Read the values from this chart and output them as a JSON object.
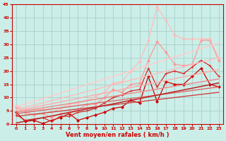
{
  "title": "",
  "xlabel": "Vent moyen/en rafales ( km/h )",
  "ylabel": "",
  "bg_color": "#cceee8",
  "grid_color": "#aad4ce",
  "xlim": [
    -0.5,
    23.5
  ],
  "ylim": [
    0,
    45
  ],
  "yticks": [
    0,
    5,
    10,
    15,
    20,
    25,
    30,
    35,
    40,
    45
  ],
  "xticks": [
    0,
    1,
    2,
    3,
    4,
    5,
    6,
    7,
    8,
    9,
    10,
    11,
    12,
    13,
    14,
    15,
    16,
    17,
    18,
    19,
    20,
    21,
    22,
    23
  ],
  "series": [
    {
      "x": [
        0,
        1,
        2,
        3,
        4,
        5,
        6,
        7,
        8,
        9,
        10,
        11,
        12,
        13,
        14,
        15,
        16,
        17,
        18,
        19,
        20,
        21,
        22,
        23
      ],
      "y": [
        4.5,
        1.0,
        1.5,
        0.3,
        1.5,
        2.5,
        4.0,
        1.5,
        2.5,
        3.5,
        4.5,
        6.0,
        6.5,
        9.0,
        8.0,
        18.0,
        8.5,
        16.0,
        15.0,
        15.0,
        18.0,
        21.0,
        15.0,
        14.0
      ],
      "color": "#cc0000",
      "marker": "D",
      "markersize": 2.0,
      "linewidth": 0.9
    },
    {
      "x": [
        0,
        1,
        2,
        3,
        4,
        5,
        6,
        7,
        8,
        9,
        10,
        11,
        12,
        13,
        14,
        15,
        16,
        17,
        18,
        19,
        20,
        21,
        22,
        23
      ],
      "y": [
        3.5,
        1.5,
        2.0,
        2.5,
        1.0,
        3.0,
        3.0,
        4.5,
        5.0,
        6.0,
        8.0,
        10.0,
        11.0,
        12.5,
        13.0,
        21.0,
        14.0,
        19.0,
        20.0,
        19.0,
        21.5,
        24.0,
        22.0,
        18.0
      ],
      "color": "#dd2222",
      "marker": "+",
      "markersize": 3.5,
      "linewidth": 0.9
    },
    {
      "x": [
        0,
        1,
        2,
        3,
        4,
        5,
        6,
        7,
        8,
        9,
        10,
        11,
        12,
        13,
        14,
        15,
        16,
        17,
        18,
        19,
        20,
        21,
        22,
        23
      ],
      "y": [
        6.5,
        4.5,
        3.5,
        4.0,
        2.5,
        4.0,
        4.5,
        5.5,
        7.5,
        7.5,
        10.0,
        13.0,
        12.0,
        15.0,
        15.5,
        24.0,
        31.0,
        27.0,
        22.5,
        22.0,
        22.5,
        31.5,
        31.5,
        24.0
      ],
      "color": "#ff9999",
      "marker": "D",
      "markersize": 2.0,
      "linewidth": 0.9
    },
    {
      "x": [
        0,
        1,
        2,
        3,
        4,
        5,
        6,
        7,
        8,
        9,
        10,
        11,
        12,
        13,
        14,
        15,
        16,
        17,
        18,
        19,
        20,
        21,
        22,
        23
      ],
      "y": [
        7.0,
        5.5,
        5.5,
        5.5,
        4.5,
        6.0,
        7.5,
        8.0,
        9.0,
        10.5,
        12.0,
        15.5,
        16.0,
        20.0,
        23.5,
        31.5,
        44.0,
        39.0,
        33.5,
        32.0,
        32.0,
        32.0,
        32.0,
        25.0
      ],
      "color": "#ffbbbb",
      "marker": "D",
      "markersize": 2.0,
      "linewidth": 0.9
    },
    {
      "x": [
        0,
        23
      ],
      "y": [
        6.5,
        30.5
      ],
      "color": "#ffcccc",
      "marker": null,
      "markersize": 0,
      "linewidth": 1.1
    },
    {
      "x": [
        0,
        23
      ],
      "y": [
        5.5,
        25.0
      ],
      "color": "#ffbbbb",
      "marker": null,
      "markersize": 0,
      "linewidth": 1.0
    },
    {
      "x": [
        0,
        23
      ],
      "y": [
        5.0,
        20.5
      ],
      "color": "#ffaaaa",
      "marker": null,
      "markersize": 0,
      "linewidth": 1.0
    },
    {
      "x": [
        0,
        23
      ],
      "y": [
        4.5,
        17.0
      ],
      "color": "#ee8888",
      "marker": null,
      "markersize": 0,
      "linewidth": 1.0
    },
    {
      "x": [
        0,
        23
      ],
      "y": [
        4.0,
        14.0
      ],
      "color": "#dd6666",
      "marker": null,
      "markersize": 0,
      "linewidth": 1.0
    },
    {
      "x": [
        0,
        23
      ],
      "y": [
        3.0,
        12.0
      ],
      "color": "#cc4444",
      "marker": null,
      "markersize": 0,
      "linewidth": 1.0
    },
    {
      "x": [
        0,
        23
      ],
      "y": [
        0.5,
        15.5
      ],
      "color": "#bb2222",
      "marker": null,
      "markersize": 0,
      "linewidth": 1.1
    }
  ]
}
